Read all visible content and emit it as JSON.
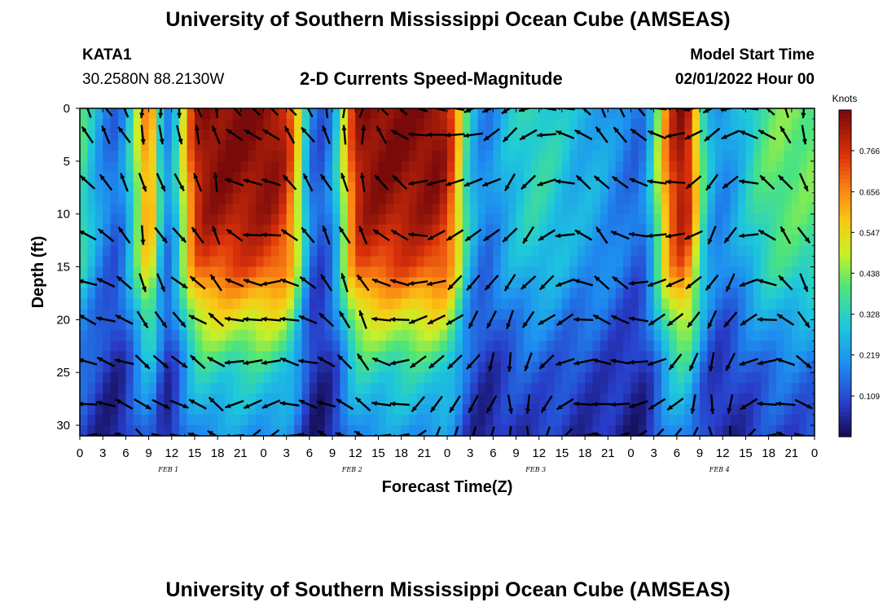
{
  "header": {
    "title": "University of Southern Mississippi Ocean Cube (AMSEAS)",
    "station": "KATA1",
    "coordinates": "30.2580N  88.2130W",
    "subtitle": "2-D Currents Speed-Magnitude",
    "start_label": "Model Start Time",
    "start_value": "02/01/2022 Hour 00"
  },
  "footer": {
    "title": "University of Southern Mississippi Ocean Cube (AMSEAS)"
  },
  "chart_data": {
    "type": "heatmap",
    "title": "2-D Currents Speed-Magnitude",
    "xlabel": "Forecast Time(Z)",
    "ylabel": "Depth (ft)",
    "x_range_hours": [
      0,
      96
    ],
    "y_range": [
      0,
      31
    ],
    "y_ticks": [
      0,
      5,
      10,
      15,
      20,
      25,
      30
    ],
    "x_tick_labels": [
      "0",
      "3",
      "6",
      "9",
      "12",
      "15",
      "18",
      "21",
      "0",
      "3",
      "6",
      "9",
      "12",
      "15",
      "18",
      "21",
      "0",
      "3",
      "6",
      "9",
      "12",
      "15",
      "18",
      "21",
      "0",
      "3",
      "6",
      "9",
      "12",
      "15",
      "18",
      "21",
      "0"
    ],
    "day_labels": [
      "FEB 1",
      "FEB 2",
      "FEB 3",
      "FEB 4"
    ],
    "colorbar": {
      "unit": "Knots",
      "ticks": [
        0.766,
        0.656,
        0.547,
        0.438,
        0.328,
        0.219,
        0.109
      ],
      "range": [
        0,
        0.875
      ]
    },
    "speed_profile": {
      "hours": [
        0,
        1,
        2,
        3,
        4,
        5,
        6,
        7,
        8,
        9,
        10,
        11,
        12,
        13,
        14,
        15,
        16,
        17,
        18,
        19,
        20,
        21,
        22,
        23,
        24,
        25,
        26,
        27,
        28,
        29,
        30,
        31,
        32,
        33,
        34,
        35,
        36,
        37,
        38,
        39,
        40,
        41,
        42,
        43,
        44,
        45,
        46,
        47,
        48,
        49,
        50,
        51,
        52,
        53,
        54,
        55,
        56,
        57,
        58,
        59,
        60,
        61,
        62,
        63,
        64,
        65,
        66,
        67,
        68,
        69,
        70,
        71,
        72,
        73,
        74,
        75,
        76,
        77,
        78,
        79,
        80,
        81,
        82,
        83,
        84,
        85,
        86,
        87,
        88,
        89,
        90,
        91,
        92,
        93,
        94,
        95,
        96
      ],
      "surface_knots": [
        0.4,
        0.33,
        0.26,
        0.2,
        0.16,
        0.15,
        0.24,
        0.38,
        0.55,
        0.7,
        0.48,
        0.2,
        0.22,
        0.4,
        0.62,
        0.78,
        0.85,
        0.86,
        0.86,
        0.86,
        0.86,
        0.86,
        0.86,
        0.86,
        0.86,
        0.85,
        0.83,
        0.78,
        0.65,
        0.4,
        0.2,
        0.12,
        0.14,
        0.22,
        0.38,
        0.62,
        0.8,
        0.85,
        0.86,
        0.86,
        0.86,
        0.86,
        0.86,
        0.86,
        0.86,
        0.86,
        0.86,
        0.85,
        0.8,
        0.68,
        0.45,
        0.3,
        0.22,
        0.18,
        0.2,
        0.24,
        0.28,
        0.3,
        0.32,
        0.34,
        0.34,
        0.33,
        0.32,
        0.3,
        0.28,
        0.26,
        0.26,
        0.25,
        0.24,
        0.22,
        0.2,
        0.18,
        0.16,
        0.15,
        0.2,
        0.35,
        0.55,
        0.72,
        0.82,
        0.85,
        0.72,
        0.45,
        0.3,
        0.22,
        0.2,
        0.22,
        0.26,
        0.3,
        0.34,
        0.38,
        0.4,
        0.42,
        0.42,
        0.42,
        0.42,
        0.42,
        0.42
      ],
      "depth_factor_ft": [
        0,
        5,
        10,
        15,
        20,
        25,
        31
      ],
      "depth_factor": [
        1.0,
        1.0,
        0.96,
        0.85,
        0.6,
        0.38,
        0.25
      ]
    },
    "arrow_grid": {
      "note": "current direction vectors sampled every 2 forecast hours at depths 0,2.5,7,12,16.5,20,24,28,31 ft",
      "directions_deg_from_east": [
        110,
        105,
        95,
        100,
        250,
        260,
        270,
        90,
        80,
        70,
        120,
        130,
        135,
        110,
        100,
        95,
        85,
        75,
        70,
        110,
        120,
        135,
        150,
        160,
        170,
        180,
        185,
        190,
        200,
        190,
        170,
        150,
        120,
        100,
        100,
        110,
        130,
        150,
        160,
        165,
        180,
        200,
        190,
        150,
        120,
        110,
        95,
        260,
        250,
        240
      ]
    }
  }
}
